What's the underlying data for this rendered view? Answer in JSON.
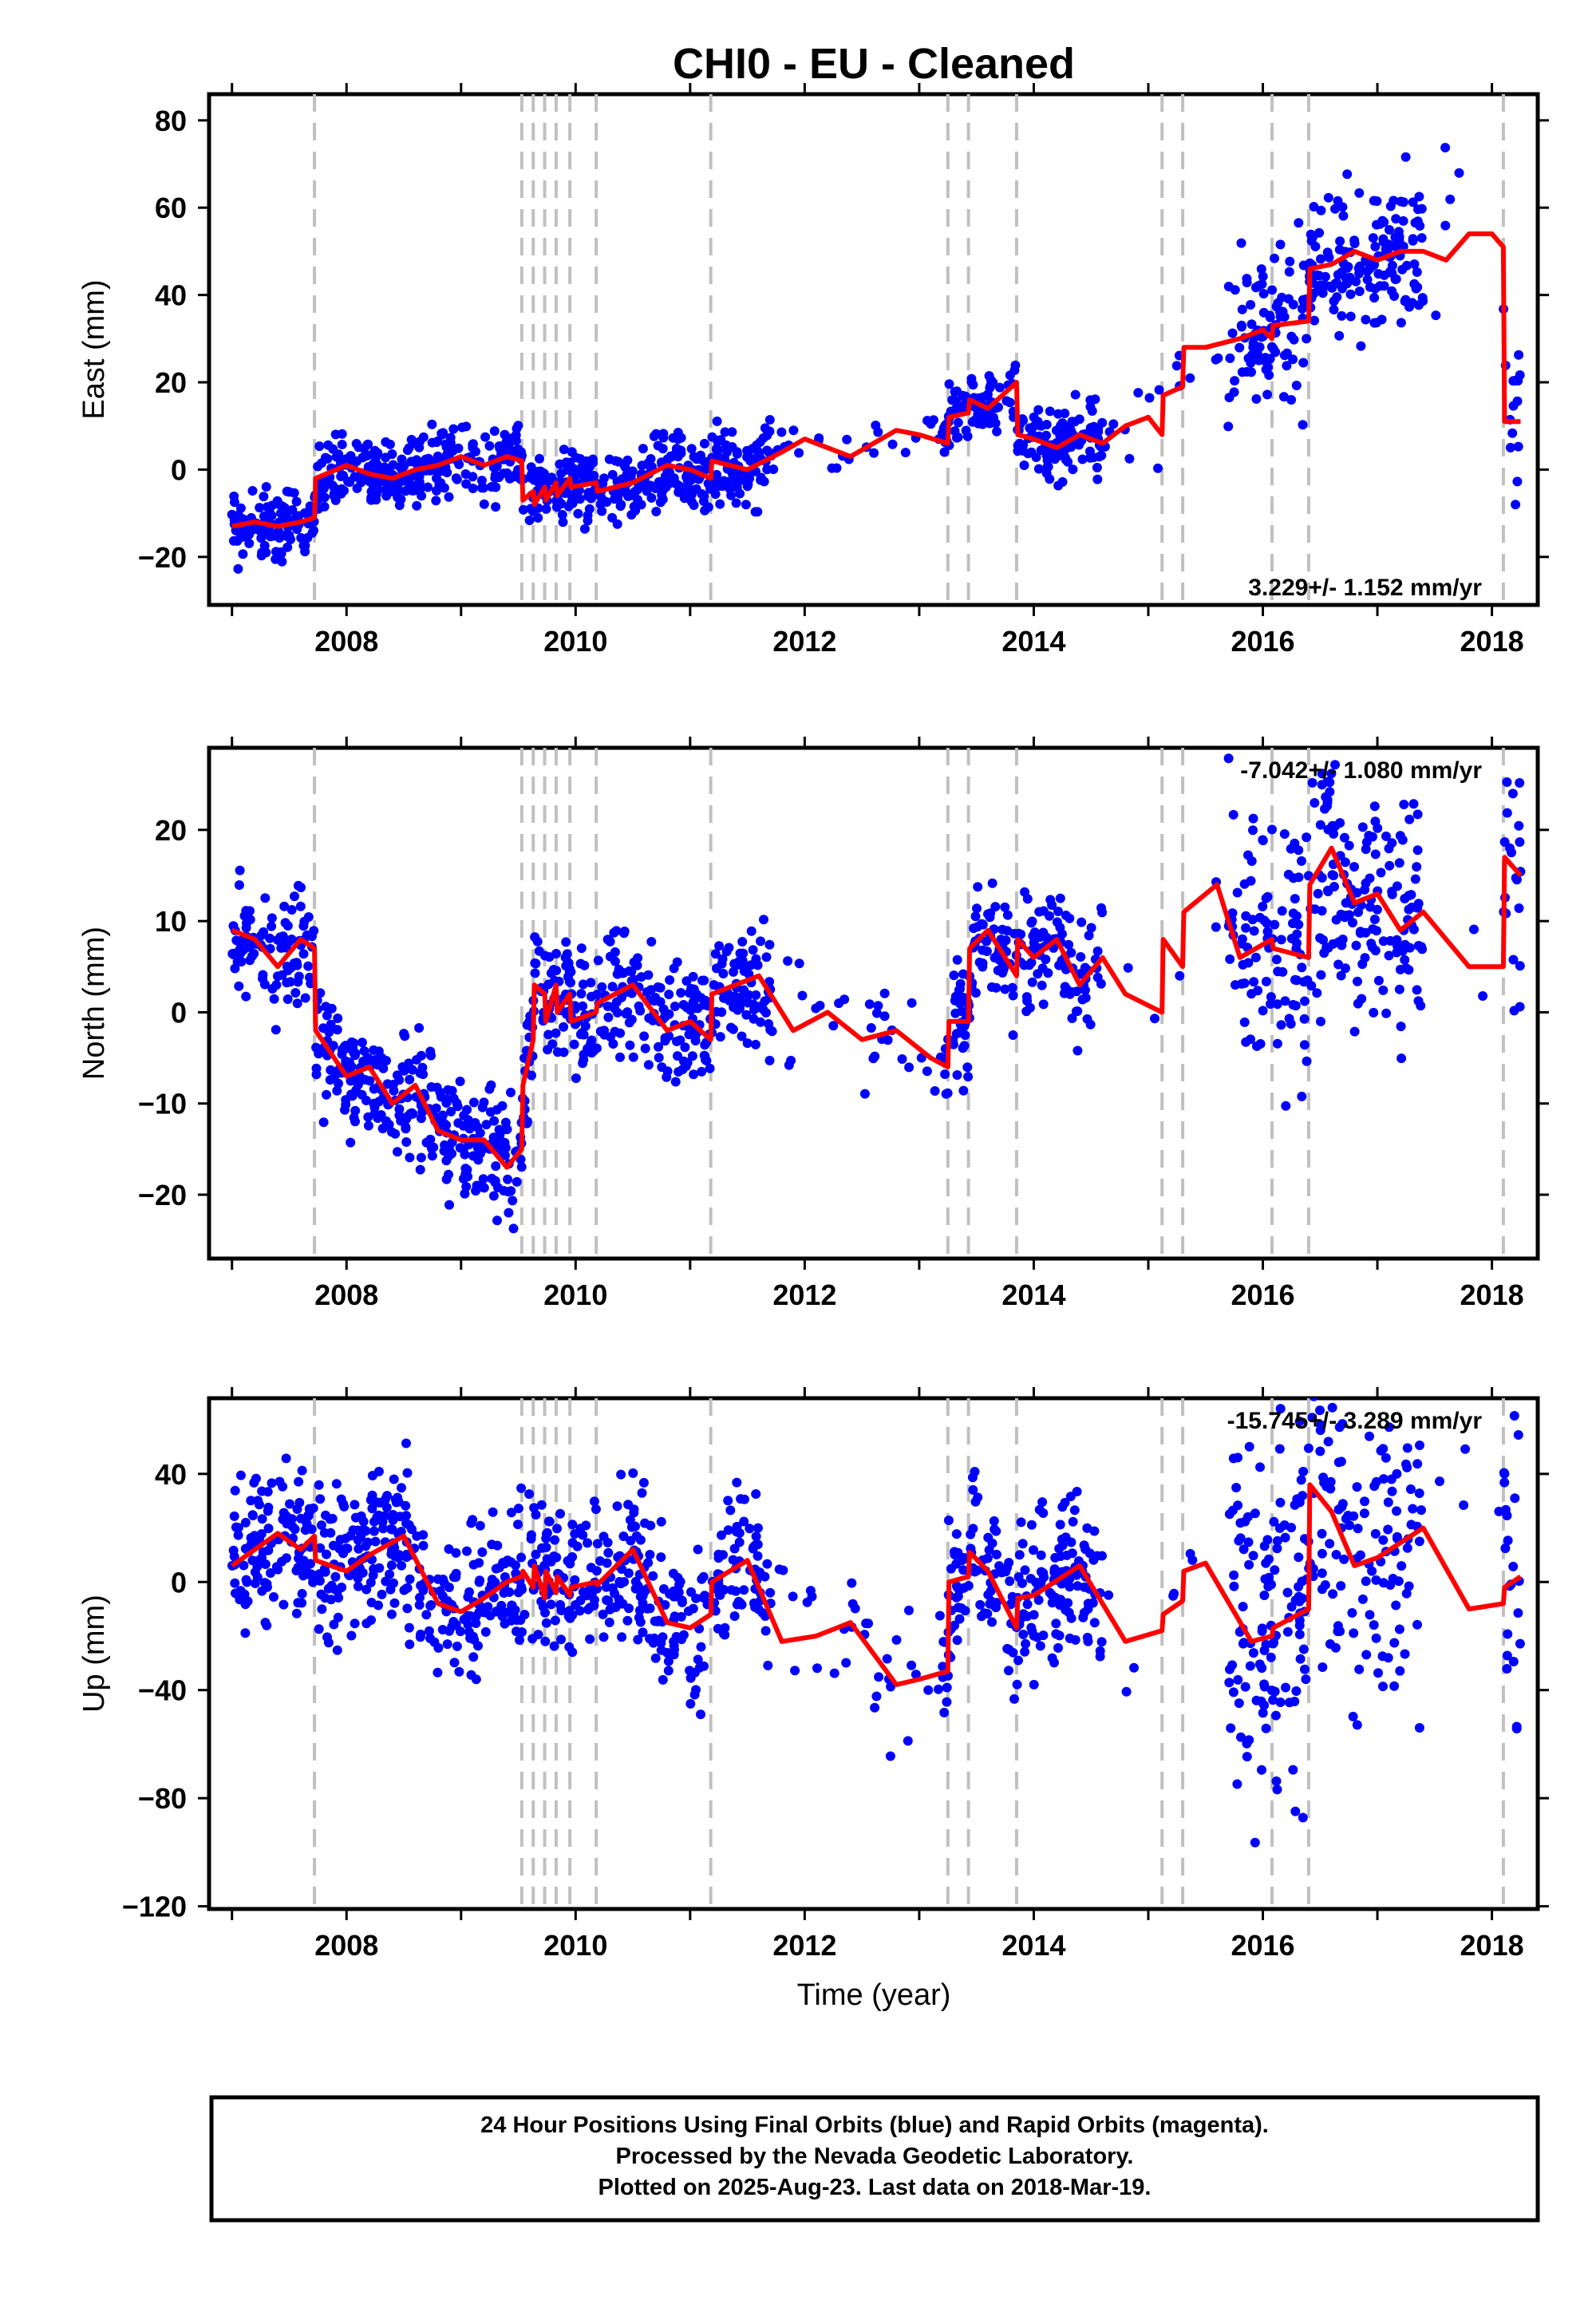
{
  "title": "CHI0  - EU - Cleaned",
  "colors": {
    "data": "#0000ff",
    "model": "#ff0000",
    "breaks": "#c0c0c0",
    "frame": "#000000"
  },
  "xaxis": {
    "label": "Time (year)",
    "range": [
      2006.8,
      2018.4
    ],
    "ticks": [
      "2008",
      "2010",
      "2012",
      "2014",
      "2016",
      "2018"
    ]
  },
  "footer": {
    "lines": [
      "24 Hour Positions Using Final Orbits (blue) and Rapid Orbits (magenta).",
      "Processed by the Nevada Geodetic Laboratory.",
      "Plotted on 2025-Aug-23. Last data on 2018-Mar-19."
    ]
  },
  "chart_data": [
    {
      "type": "scatter",
      "ylabel": "East (mm)",
      "ylim": [
        -31,
        86
      ],
      "yticks": [
        "80",
        "60",
        "40",
        "20",
        "0",
        "−20"
      ],
      "rate": "3.229+/- 1.152 mm/yr",
      "rate_position": "bottom-right",
      "breaks": [
        2007.72,
        2009.53,
        2009.63,
        2009.73,
        2009.83,
        2009.95,
        2010.18,
        2011.18,
        2013.25,
        2013.43,
        2013.85,
        2015.12,
        2015.3,
        2016.08,
        2016.4,
        2018.1
      ],
      "model": {
        "x": [
          2007.0,
          2007.2,
          2007.4,
          2007.6,
          2007.72,
          2007.73,
          2008.0,
          2008.2,
          2008.4,
          2008.6,
          2008.8,
          2009.0,
          2009.2,
          2009.4,
          2009.53,
          2009.54,
          2009.63,
          2009.64,
          2009.73,
          2009.74,
          2009.83,
          2009.84,
          2009.95,
          2009.96,
          2010.18,
          2010.19,
          2010.5,
          2010.8,
          2011.0,
          2011.18,
          2011.19,
          2011.5,
          2011.8,
          2012.0,
          2012.2,
          2012.4,
          2012.6,
          2012.8,
          2013.0,
          2013.25,
          2013.26,
          2013.43,
          2013.44,
          2013.6,
          2013.85,
          2013.86,
          2014.0,
          2014.2,
          2014.4,
          2014.6,
          2014.8,
          2015.0,
          2015.12,
          2015.13,
          2015.3,
          2015.31,
          2015.5,
          2015.8,
          2016.0,
          2016.08,
          2016.09,
          2016.4,
          2016.41,
          2016.6,
          2016.8,
          2017.0,
          2017.2,
          2017.4,
          2017.6,
          2017.8,
          2018.0,
          2018.1,
          2018.11,
          2018.25
        ],
        "y": [
          -13,
          -12,
          -13,
          -12,
          -11,
          -2,
          1,
          -1,
          -2,
          0,
          1,
          3,
          1,
          3,
          2,
          -7,
          -5,
          -8,
          -4,
          -7,
          -3,
          -6,
          -2,
          -4,
          -3,
          -5,
          -3,
          1,
          0,
          -2,
          2,
          0,
          4,
          7,
          5,
          3,
          6,
          9,
          8,
          6,
          12,
          13,
          16,
          14,
          20,
          8,
          7,
          5,
          8,
          6,
          10,
          12,
          8,
          17,
          19,
          28,
          28,
          30,
          32,
          30,
          33,
          34,
          46,
          47,
          50,
          48,
          50,
          50,
          48,
          54,
          54,
          51,
          11,
          11
        ]
      }
    },
    {
      "type": "scatter",
      "ylabel": "North (mm)",
      "ylim": [
        -27,
        29
      ],
      "yticks": [
        "20",
        "10",
        "0",
        "−10",
        "−20"
      ],
      "rate": "-7.042+/- 1.080 mm/yr",
      "rate_position": "top-right",
      "breaks": [
        2007.72,
        2009.53,
        2009.63,
        2009.73,
        2009.83,
        2009.95,
        2010.18,
        2011.18,
        2013.25,
        2013.43,
        2013.85,
        2015.12,
        2015.3,
        2016.08,
        2016.4,
        2018.1
      ],
      "model": {
        "x": [
          2007.0,
          2007.2,
          2007.4,
          2007.6,
          2007.72,
          2007.73,
          2008.0,
          2008.2,
          2008.4,
          2008.6,
          2008.8,
          2009.0,
          2009.2,
          2009.4,
          2009.53,
          2009.54,
          2009.63,
          2009.64,
          2009.73,
          2009.74,
          2009.83,
          2009.84,
          2009.95,
          2009.96,
          2010.18,
          2010.19,
          2010.5,
          2010.8,
          2011.0,
          2011.18,
          2011.19,
          2011.6,
          2011.9,
          2012.2,
          2012.5,
          2012.8,
          2013.1,
          2013.25,
          2013.26,
          2013.43,
          2013.44,
          2013.6,
          2013.85,
          2013.86,
          2014.0,
          2014.2,
          2014.4,
          2014.6,
          2014.8,
          2015.12,
          2015.13,
          2015.3,
          2015.31,
          2015.6,
          2015.8,
          2016.08,
          2016.09,
          2016.4,
          2016.41,
          2016.6,
          2016.8,
          2017.0,
          2017.2,
          2017.4,
          2017.6,
          2017.8,
          2018.1,
          2018.11,
          2018.25
        ],
        "y": [
          9,
          8,
          5,
          8,
          7,
          -2,
          -7,
          -6,
          -10,
          -8,
          -13,
          -14,
          -14,
          -17,
          -15,
          -8,
          -3,
          3,
          2,
          -1,
          3,
          0,
          2,
          -1,
          0,
          1,
          3,
          -2,
          -1,
          -3,
          2,
          4,
          -2,
          0,
          -3,
          -2,
          -5,
          -6,
          -1,
          -1,
          7,
          9,
          4,
          8,
          6,
          8,
          3,
          6,
          2,
          0,
          8,
          5,
          11,
          14,
          6,
          8,
          7,
          6,
          14,
          18,
          12,
          13,
          9,
          11,
          8,
          5,
          5,
          17,
          15
        ]
      }
    },
    {
      "type": "scatter",
      "ylabel": "Up (mm)",
      "ylim": [
        -121,
        68
      ],
      "yticks": [
        "40",
        "0",
        "−40",
        "−80",
        "−120"
      ],
      "rate": "-15.745+/- 3.289 mm/yr",
      "rate_position": "top-right",
      "breaks": [
        2007.72,
        2009.53,
        2009.63,
        2009.73,
        2009.83,
        2009.95,
        2010.18,
        2011.18,
        2013.25,
        2013.43,
        2013.85,
        2015.12,
        2015.3,
        2016.08,
        2016.4,
        2018.1
      ],
      "model": {
        "x": [
          2007.0,
          2007.2,
          2007.4,
          2007.6,
          2007.72,
          2007.73,
          2008.0,
          2008.2,
          2008.5,
          2008.8,
          2009.0,
          2009.2,
          2009.4,
          2009.53,
          2009.54,
          2009.63,
          2009.64,
          2009.73,
          2009.74,
          2009.83,
          2009.84,
          2009.95,
          2009.96,
          2010.18,
          2010.19,
          2010.5,
          2010.8,
          2011.0,
          2011.18,
          2011.19,
          2011.5,
          2011.8,
          2012.1,
          2012.4,
          2012.8,
          2013.0,
          2013.25,
          2013.26,
          2013.43,
          2013.44,
          2013.6,
          2013.85,
          2013.86,
          2014.0,
          2014.4,
          2014.8,
          2015.12,
          2015.13,
          2015.3,
          2015.31,
          2015.5,
          2015.9,
          2016.08,
          2016.09,
          2016.4,
          2016.41,
          2016.6,
          2016.8,
          2017.0,
          2017.4,
          2017.8,
          2018.1,
          2018.11,
          2018.25
        ],
        "y": [
          6,
          12,
          18,
          12,
          17,
          8,
          4,
          10,
          17,
          -8,
          -11,
          -6,
          0,
          2,
          4,
          -2,
          6,
          -6,
          4,
          -4,
          2,
          -5,
          -2,
          0,
          -1,
          12,
          -15,
          -17,
          -12,
          0,
          8,
          -22,
          -20,
          -15,
          -38,
          -36,
          -33,
          0,
          2,
          11,
          4,
          -17,
          -6,
          -5,
          6,
          -22,
          -18,
          -12,
          -7,
          4,
          7,
          -22,
          -20,
          -17,
          -10,
          36,
          26,
          6,
          9,
          20,
          -10,
          -8,
          -2,
          2
        ]
      }
    }
  ]
}
